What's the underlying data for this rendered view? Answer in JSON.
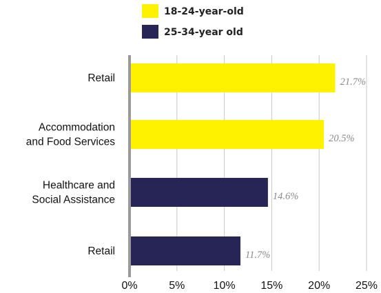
{
  "chart_data": {
    "type": "bar",
    "orientation": "horizontal",
    "series": [
      {
        "name": "18-24-year-old",
        "color": "#FFF200",
        "points": [
          {
            "category": "Retail",
            "value": 21.7,
            "label": "21.7%"
          },
          {
            "category": "Accommodation and Food Services",
            "value": 20.5,
            "label": "20.5%"
          }
        ]
      },
      {
        "name": "25-34-year old",
        "color": "#272556",
        "points": [
          {
            "category": "Healthcare and Social Assistance",
            "value": 14.6,
            "label": "14.6%"
          },
          {
            "category": "Retail",
            "value": 11.7,
            "label": "11.7%"
          }
        ]
      }
    ],
    "categories": [
      [
        "Retail"
      ],
      [
        "Accommodation",
        "and Food Services"
      ],
      [
        "Healthcare and",
        "Social Assistance"
      ],
      [
        "Retail"
      ]
    ],
    "xlim": [
      0,
      25
    ],
    "xticks": [
      "0%",
      "5%",
      "10%",
      "15%",
      "20%",
      "25%"
    ],
    "grid": "vertical",
    "legend_position": "top-center",
    "title": "",
    "xlabel": "",
    "ylabel": ""
  }
}
